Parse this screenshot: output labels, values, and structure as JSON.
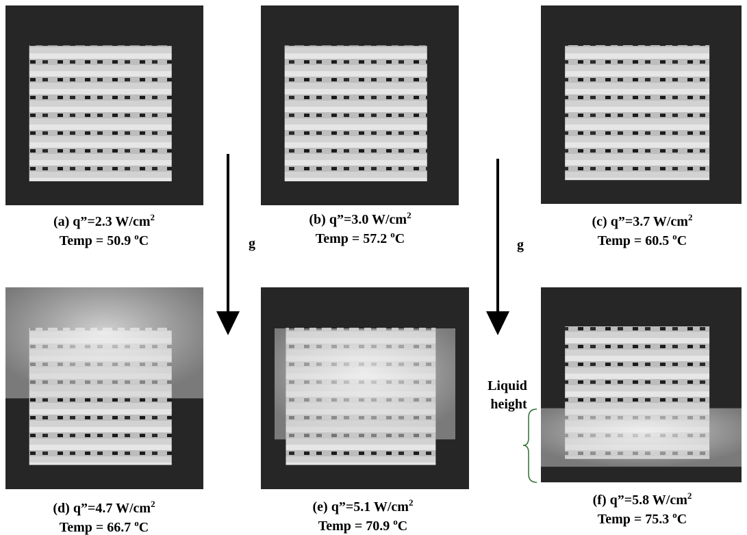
{
  "panels": [
    {
      "caption": "(a) q”=2.3 W/cm",
      "caption_sup": "2",
      "temp": "Temp = 50.9",
      "temp_sup": "o",
      "temp_unit": "C"
    },
    {
      "caption": "(b) q”=3.0 W/cm",
      "caption_sup": "2",
      "temp": "Temp = 57.2",
      "temp_sup": "o",
      "temp_unit": "C"
    },
    {
      "caption": "(c) q”=3.7 W/cm",
      "caption_sup": "2",
      "temp": "Temp = 60.5",
      "temp_sup": "o",
      "temp_unit": "C"
    },
    {
      "caption": "(d) q”=4.7 W/cm",
      "caption_sup": "2",
      "temp": "Temp = 66.7",
      "temp_sup": "o",
      "temp_unit": "C"
    },
    {
      "caption": "(e) q”=5.1 W/cm",
      "caption_sup": "2",
      "temp": "Temp = 70.9",
      "temp_sup": "o",
      "temp_unit": "C"
    },
    {
      "caption": "(f) q”=5.8 W/cm",
      "caption_sup": "2",
      "temp": "Temp = 75.3",
      "temp_sup": "o",
      "temp_unit": "C"
    }
  ],
  "gravity_labels": [
    "g",
    "g"
  ],
  "liquid_height_label": [
    "Liquid",
    "height"
  ]
}
